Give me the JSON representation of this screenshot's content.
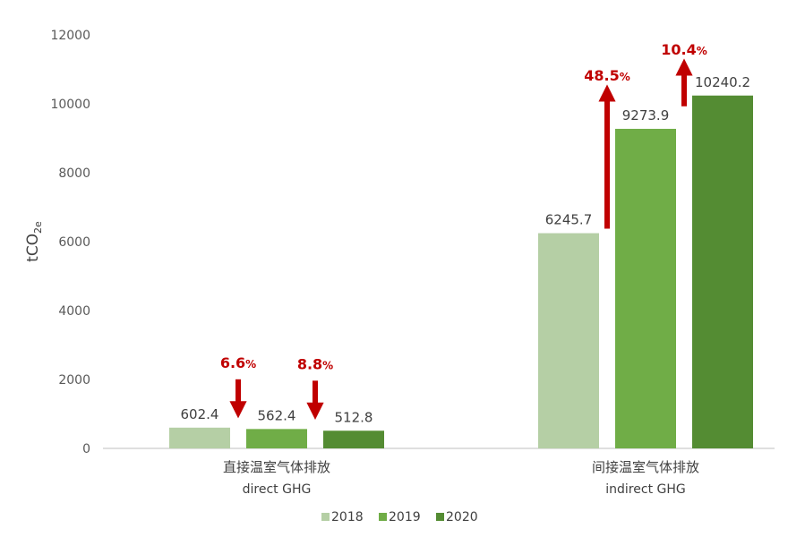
{
  "chart_data": {
    "type": "bar",
    "categories": [
      {
        "zh": "直接温室气体排放",
        "en": "direct GHG"
      },
      {
        "zh": "间接温室气体排放",
        "en": "indirect GHG"
      }
    ],
    "series": [
      {
        "name": "2018",
        "color": "#b5cfa5",
        "values": [
          602.4,
          6245.7
        ]
      },
      {
        "name": "2019",
        "color": "#70ad47",
        "values": [
          562.4,
          9273.9
        ]
      },
      {
        "name": "2020",
        "color": "#548c33",
        "values": [
          512.8,
          10240.2
        ]
      }
    ],
    "value_labels": [
      [
        "602.4",
        "6245.7"
      ],
      [
        "562.4",
        "9273.9"
      ],
      [
        "512.8",
        "10240.2"
      ]
    ],
    "ylabel": {
      "main": "tCO",
      "sub": "2e"
    },
    "ylim": [
      0,
      12000
    ],
    "yticks": [
      "0",
      "2000",
      "4000",
      "6000",
      "8000",
      "10000",
      "12000"
    ],
    "grid": false,
    "legend_position": "bottom",
    "changes": [
      {
        "category": 0,
        "between": [
          0,
          1
        ],
        "direction": "down",
        "label": "6.6",
        "unit": "%"
      },
      {
        "category": 0,
        "between": [
          1,
          2
        ],
        "direction": "down",
        "label": "8.8",
        "unit": "%"
      },
      {
        "category": 1,
        "between": [
          0,
          1
        ],
        "direction": "up",
        "label": "48.5",
        "unit": "%"
      },
      {
        "category": 1,
        "between": [
          1,
          2
        ],
        "direction": "up",
        "label": "10.4",
        "unit": "%"
      }
    ],
    "change_color": "#c00000"
  }
}
